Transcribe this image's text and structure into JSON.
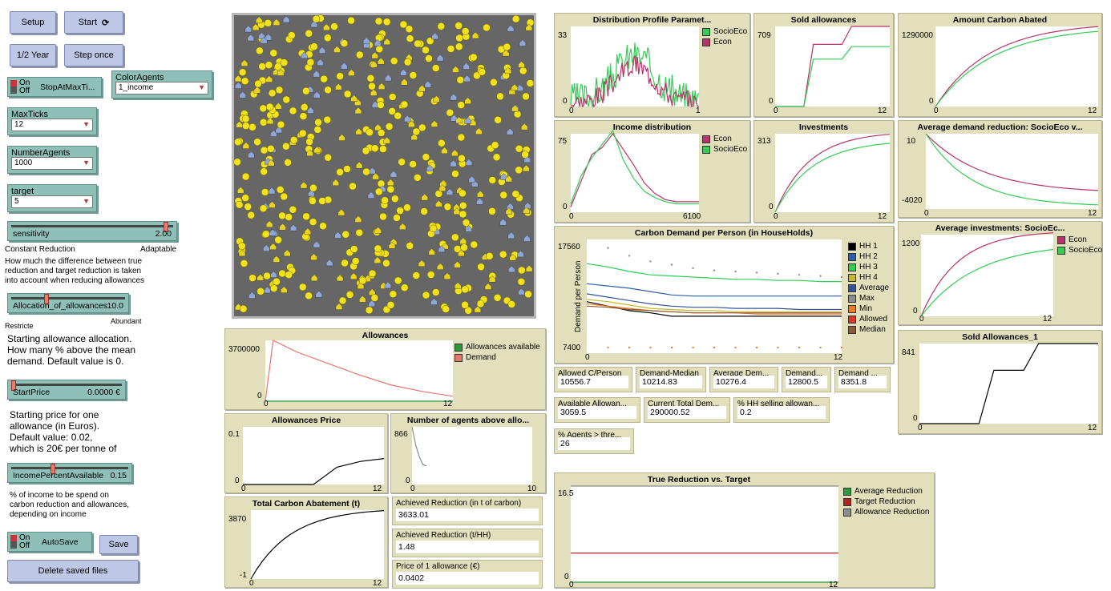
{
  "buttons": {
    "setup": "Setup",
    "start": "Start",
    "half_year": "1/2 Year",
    "step_once": "Step once",
    "save": "Save",
    "delete_saved": "Delete saved files"
  },
  "switches": {
    "stop_at_max": {
      "on": "On",
      "off": "Off",
      "label": "StopAtMaxTi..."
    },
    "autosave": {
      "on": "On",
      "off": "Off",
      "label": "AutoSave"
    }
  },
  "choosers": {
    "color_agents": {
      "label": "ColorAgents",
      "value": "1_income"
    },
    "max_ticks": {
      "label": "MaxTicks",
      "value": "12"
    },
    "number_agents": {
      "label": "NumberAgents",
      "value": "1000"
    },
    "target": {
      "label": "target",
      "value": "5"
    }
  },
  "sliders": {
    "sensitivity": {
      "label": "sensitivity",
      "value": "2.00",
      "fraction": 0.97
    },
    "allocation": {
      "label": "Allocation_of_allowances",
      "value": "-10.0",
      "fraction": 0.3
    },
    "start_price": {
      "label": "StartPrice",
      "value": "0.0000 €",
      "fraction": 0.0
    },
    "income_percent": {
      "label": "IncomePercentAvailable",
      "value": "0.15",
      "fraction": 0.35
    }
  },
  "notes": {
    "sensitivity_min": "Constant Reduction",
    "sensitivity_max": "Adaptable",
    "sensitivity_desc_1": "How much the difference between true",
    "sensitivity_desc_2": "reduction and target reduction is taken",
    "sensitivity_desc_3": "into account when reducing allowances",
    "alloc_min": "Restricte",
    "alloc_max": "Abundant",
    "alloc_desc_1": "Starting allowance allocation.",
    "alloc_desc_2": "How many % above the mean",
    "alloc_desc_3": "demand. Default value is 0.",
    "price_desc_1": "Starting price for one",
    "price_desc_2": "allowance (in Euros).",
    "price_desc_3": "Default value: 0.02,",
    "price_desc_4": "which is 20€ per tonne of",
    "income_desc_1": "% of income to be spend on",
    "income_desc_2": "carbon reduction and allowances,",
    "income_desc_3": "depending on income"
  },
  "colors": {
    "green": "#33cc55",
    "magenta": "#b8336a",
    "red": "#e8766d",
    "dark_green": "#2a9a3a",
    "dark_red": "#b22222",
    "gray": "#8d8d8d"
  },
  "plots": {
    "distribution": {
      "title": "Distribution Profile Paramet...",
      "ymax": "33",
      "ymin": "0",
      "xmin": "0",
      "xmax": "1",
      "legend": [
        "SocioEco",
        "Econ"
      ]
    },
    "sold": {
      "title": "Sold allowances",
      "ymax": "709",
      "ymin": "0",
      "xmin": "0",
      "xmax": "12"
    },
    "abated": {
      "title": "Amount Carbon Abated",
      "ymax": "1290000",
      "ymin": "0",
      "xmin": "0",
      "xmax": "12"
    },
    "income": {
      "title": "Income distribution",
      "ymax": "75",
      "ymin": "0",
      "xmin": "0",
      "xmax": "6100",
      "legend": [
        "Econ",
        "SocioEco"
      ]
    },
    "investments": {
      "title": "Investments",
      "ymax": "313",
      "ymin": "0",
      "xmin": "0",
      "xmax": "12"
    },
    "avg_demand_red": {
      "title": "Average demand reduction: SocioEco v...",
      "ymax": "10",
      "ymin": "-4020",
      "xmin": "0",
      "xmax": "12"
    },
    "carbon_demand": {
      "title": "Carbon Demand per Person (in HouseHolds)",
      "ymax": "17560",
      "ymin": "7400",
      "xmin": "0",
      "xmax": "12",
      "ylabel": "Demand per Person",
      "legend": [
        "HH 1",
        "HH 2",
        "HH 3",
        "HH 4",
        "Average",
        "Max",
        "Min",
        "Allowed",
        "Median"
      ]
    },
    "avg_investments": {
      "title": "Average investments: SocioEc...",
      "ymax": "1200",
      "ymin": "0",
      "xmin": "0",
      "xmax": "12",
      "legend": [
        "Econ",
        "SocioEco"
      ]
    },
    "sold_1": {
      "title": "Sold Allowances_1",
      "ymax": "841",
      "ymin": "0",
      "xmin": "0",
      "xmax": "12"
    },
    "allowances": {
      "title": "Allowances",
      "ymax": "3700000",
      "ymin": "0",
      "xmin": "0",
      "xmax": "12",
      "legend": [
        "Allowances available",
        "Demand"
      ]
    },
    "price": {
      "title": "Allowances Price",
      "ymax": "0.1",
      "ymin": "0",
      "xmin": "0",
      "xmax": "12"
    },
    "agents_above": {
      "title": "Number of agents above allo...",
      "ymax": "866",
      "ymin": "0",
      "xmin": "0",
      "xmax": "10"
    },
    "total_abatement": {
      "title": "Total Carbon Abatement (t)",
      "ymax": "3870",
      "ymin": "-1",
      "xmin": "0",
      "xmax": "12"
    },
    "true_reduction": {
      "title": "True Reduction vs. Target",
      "ymax": "16.5",
      "ymin": "0",
      "xmin": "0",
      "xmax": "12",
      "legend": [
        "Average Reduction",
        "Target Reduction",
        "Allowance Reduction"
      ]
    }
  },
  "chart_data": [
    {
      "type": "line",
      "title": "Sold allowances",
      "x": [
        0,
        1,
        2,
        3,
        4,
        5,
        6,
        7,
        8,
        9,
        10,
        11,
        12
      ],
      "series": [
        {
          "values": [
            0,
            0,
            0,
            0,
            550,
            550,
            550,
            550,
            709,
            709,
            709,
            709,
            709
          ]
        },
        {
          "values": [
            0,
            0,
            0,
            0,
            420,
            420,
            420,
            420,
            530,
            530,
            530,
            530,
            530
          ]
        }
      ],
      "ylim": [
        0,
        709
      ]
    },
    {
      "type": "line",
      "title": "Allowances Price",
      "x": [
        0,
        2,
        4,
        6,
        8,
        10,
        12
      ],
      "series": [
        {
          "values": [
            0,
            0,
            0,
            0,
            0.03,
            0.04,
            0.045
          ]
        }
      ],
      "ylim": [
        0,
        0.1
      ]
    },
    {
      "type": "line",
      "title": "Sold Allowances_1",
      "x": [
        0,
        2,
        4,
        5,
        6,
        7,
        8,
        10,
        12
      ],
      "series": [
        {
          "values": [
            0,
            0,
            0,
            560,
            560,
            560,
            841,
            841,
            841
          ]
        }
      ],
      "ylim": [
        0,
        841
      ]
    },
    {
      "type": "line",
      "title": "Allowances",
      "x": [
        0,
        0.5,
        2,
        4,
        6,
        8,
        10,
        12
      ],
      "series": [
        {
          "name": "Demand",
          "values": [
            0,
            3700000,
            3000000,
            2300000,
            1600000,
            1000000,
            600000,
            300000
          ]
        },
        {
          "name": "Allowances available",
          "values": [
            0,
            0,
            0,
            0,
            0,
            0,
            0,
            0
          ]
        }
      ],
      "ylim": [
        0,
        3700000
      ]
    },
    {
      "type": "line",
      "title": "True Reduction vs. Target",
      "x": [
        0,
        12
      ],
      "series": [
        {
          "name": "Target Reduction",
          "values": [
            5,
            5
          ]
        },
        {
          "name": "Average Reduction",
          "values": [
            0,
            0
          ]
        },
        {
          "name": "Allowance Reduction",
          "values": [
            16.5,
            16.5
          ]
        }
      ],
      "ylim": [
        0,
        16.5
      ]
    }
  ],
  "monitors": {
    "allowed_c": {
      "label": "Allowed C/Person",
      "value": "10556.7"
    },
    "demand_median": {
      "label": "Demand-Median",
      "value": "10214.83"
    },
    "average_dem": {
      "label": "Average Dem...",
      "value": "10276.4"
    },
    "demand_a": {
      "label": "Demand...",
      "value": "12800.5"
    },
    "demand_b": {
      "label": "Demand ...",
      "value": "8351.8"
    },
    "available_allow": {
      "label": "Available Allowan...",
      "value": "3059.5"
    },
    "current_total": {
      "label": "Current Total Dem...",
      "value": "290000.52"
    },
    "hh_selling": {
      "label": "% HH selling allowan...",
      "value": "0.2"
    },
    "agents_thre": {
      "label": "% Agents > thre...",
      "value": "26"
    },
    "achieved_red": {
      "label": "Achieved Reduction (in t of carbon)",
      "value": "3633.01"
    },
    "achieved_hh": {
      "label": "Achieved Reduction (t/HH)",
      "value": "1.48"
    },
    "price_allow": {
      "label": "Price of 1 allowance (€)",
      "value": "0.0402"
    }
  }
}
